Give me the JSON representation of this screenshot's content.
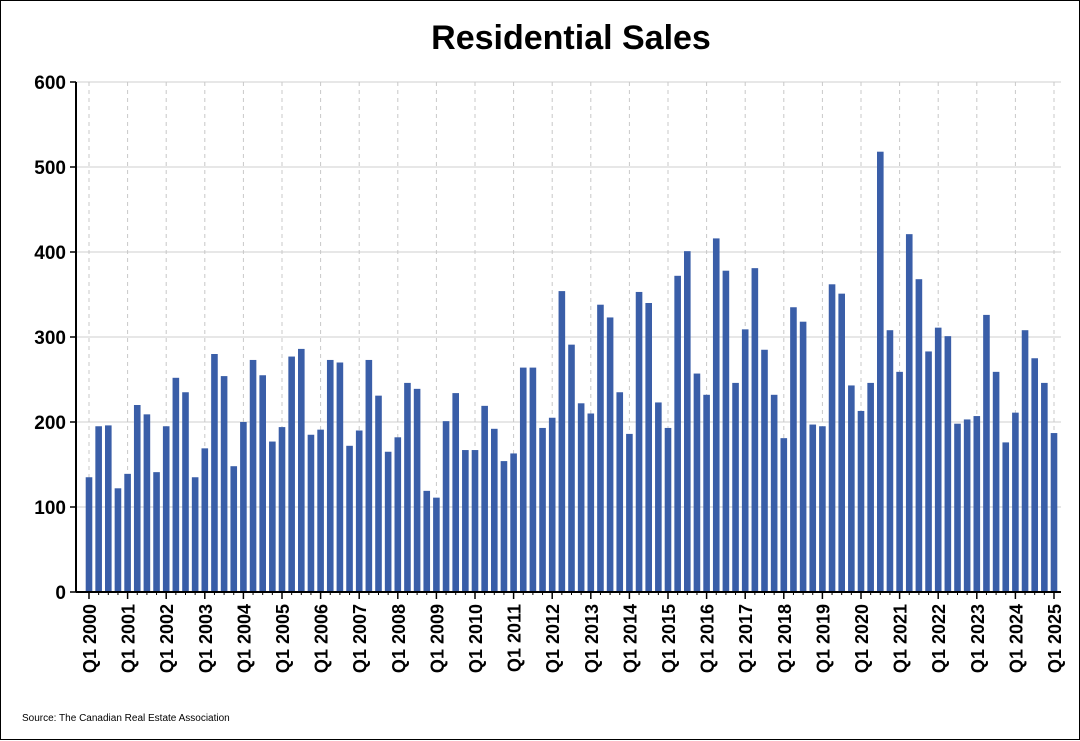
{
  "chart_data": {
    "type": "bar",
    "title": "Residential Sales",
    "xlabel": "",
    "ylabel": "",
    "ylim": [
      0,
      600
    ],
    "yticks": [
      0,
      100,
      200,
      300,
      400,
      500,
      600
    ],
    "grid": true,
    "bar_color": "#3a5ea8",
    "x_tick_labels": [
      "Q1 2000",
      "Q1 2001",
      "Q1 2002",
      "Q1 2003",
      "Q1 2004",
      "Q1 2005",
      "Q1 2006",
      "Q1 2007",
      "Q1 2008",
      "Q1 2009",
      "Q1 2010",
      "Q1 2011",
      "Q1 2012",
      "Q1 2013",
      "Q1 2014",
      "Q1 2015",
      "Q1 2016",
      "Q1 2017",
      "Q1 2018",
      "Q1 2019",
      "Q1 2020",
      "Q1 2021",
      "Q1 2022",
      "Q1 2023",
      "Q1 2024",
      "Q1 2025"
    ],
    "values": [
      135,
      195,
      196,
      122,
      139,
      220,
      209,
      141,
      195,
      252,
      235,
      135,
      169,
      280,
      254,
      148,
      200,
      273,
      255,
      177,
      194,
      277,
      286,
      185,
      191,
      273,
      270,
      172,
      190,
      273,
      231,
      165,
      182,
      246,
      239,
      119,
      111,
      201,
      234,
      167,
      167,
      219,
      192,
      154,
      163,
      264,
      264,
      193,
      205,
      354,
      291,
      222,
      210,
      338,
      323,
      235,
      186,
      353,
      340,
      223,
      193,
      372,
      401,
      257,
      232,
      416,
      378,
      246,
      309,
      381,
      285,
      232,
      181,
      335,
      318,
      197,
      195,
      362,
      351,
      243,
      213,
      246,
      518,
      308,
      259,
      421,
      368,
      283,
      311,
      301,
      198,
      203,
      207,
      326,
      259,
      176,
      211,
      308,
      275,
      246,
      187
    ]
  },
  "source": "Source: The Canadian Real Estate Association"
}
